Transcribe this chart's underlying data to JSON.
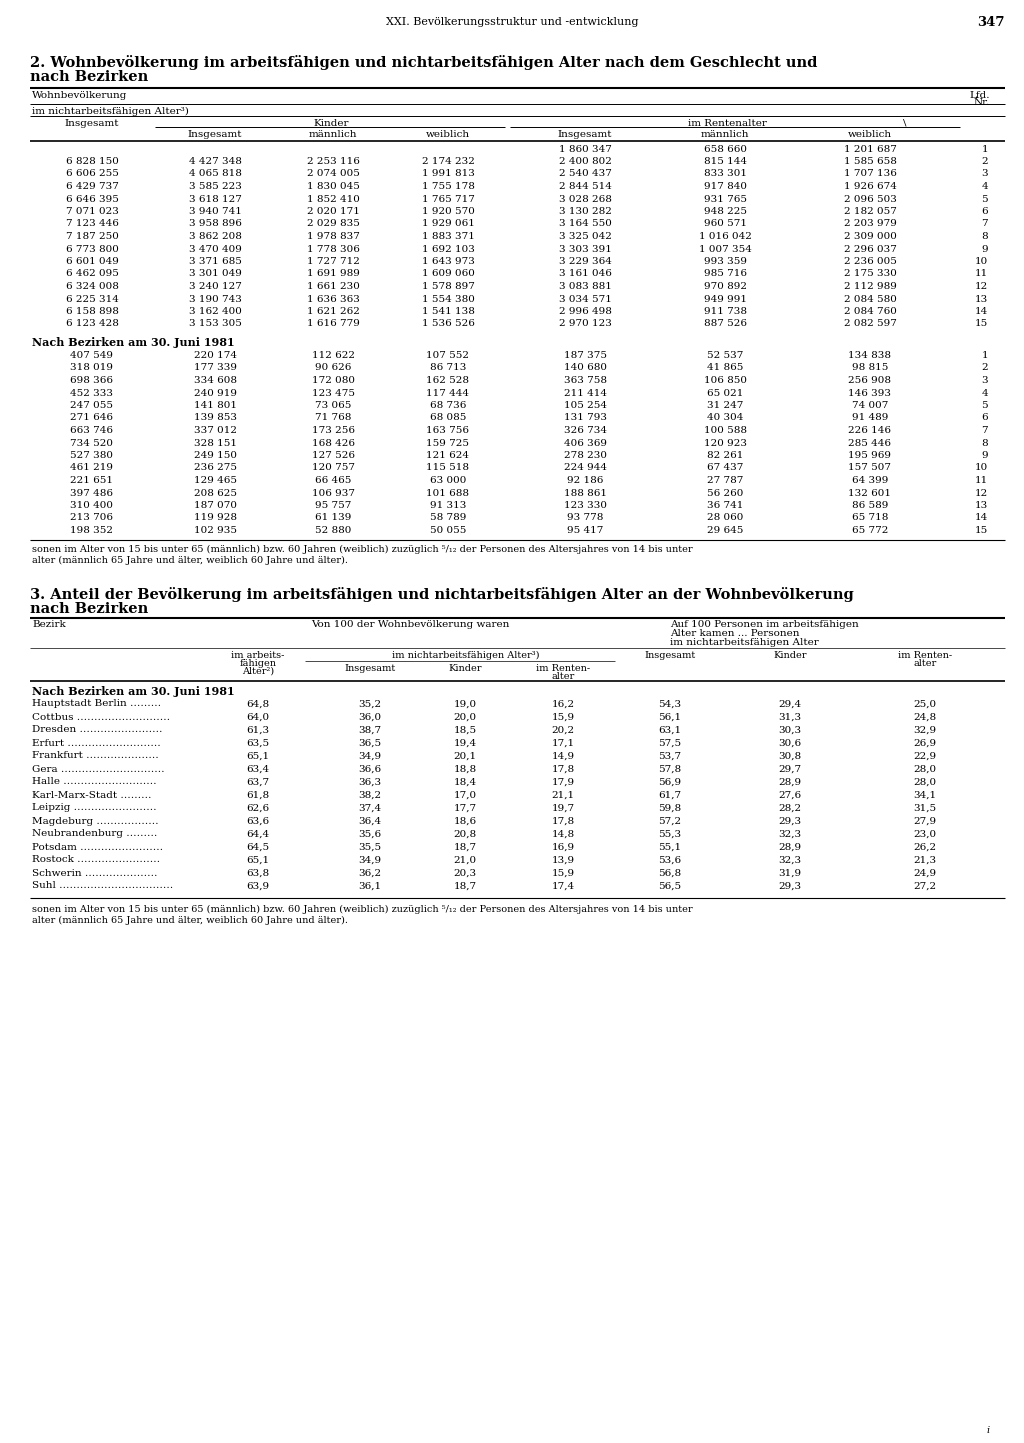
{
  "page_header": "XXI. Bevölkerungsstruktur und -entwicklung",
  "page_number": "347",
  "section2_title_line1": "2. Wohnbevölkerung im arbeitsfähigen und nichtarbeitsfähigen Alter nach dem Geschlecht und",
  "section2_title_line2": "nach Bezirken",
  "section3_title_line1": "3. Anteil der Bevölkerung im arbeitsfähigen und nichtarbeitsfähigen Alter an der Wohnbevölkerung",
  "section3_title_line2": "nach Bezirken",
  "table2_data_historical": [
    [
      "",
      "",
      "",
      "",
      "1 860 347",
      "658 660",
      "1 201 687",
      "1"
    ],
    [
      "6 828 150",
      "4 427 348",
      "2 253 116",
      "2 174 232",
      "2 400 802",
      "815 144",
      "1 585 658",
      "2"
    ],
    [
      "6 606 255",
      "4 065 818",
      "2 074 005",
      "1 991 813",
      "2 540 437",
      "833 301",
      "1 707 136",
      "3"
    ],
    [
      "6 429 737",
      "3 585 223",
      "1 830 045",
      "1 755 178",
      "2 844 514",
      "917 840",
      "1 926 674",
      "4"
    ],
    [
      "6 646 395",
      "3 618 127",
      "1 852 410",
      "1 765 717",
      "3 028 268",
      "931 765",
      "2 096 503",
      "5"
    ],
    [
      "7 071 023",
      "3 940 741",
      "2 020 171",
      "1 920 570",
      "3 130 282",
      "948 225",
      "2 182 057",
      "6"
    ],
    [
      "7 123 446",
      "3 958 896",
      "2 029 835",
      "1 929 061",
      "3 164 550",
      "960 571",
      "2 203 979",
      "7"
    ],
    [
      "7 187 250",
      "3 862 208",
      "1 978 837",
      "1 883 371",
      "3 325 042",
      "1 016 042",
      "2 309 000",
      "8"
    ],
    [
      "6 773 800",
      "3 470 409",
      "1 778 306",
      "1 692 103",
      "3 303 391",
      "1 007 354",
      "2 296 037",
      "9"
    ],
    [
      "6 601 049",
      "3 371 685",
      "1 727 712",
      "1 643 973",
      "3 229 364",
      "993 359",
      "2 236 005",
      "10"
    ],
    [
      "6 462 095",
      "3 301 049",
      "1 691 989",
      "1 609 060",
      "3 161 046",
      "985 716",
      "2 175 330",
      "11"
    ],
    [
      "6 324 008",
      "3 240 127",
      "1 661 230",
      "1 578 897",
      "3 083 881",
      "970 892",
      "2 112 989",
      "12"
    ],
    [
      "6 225 314",
      "3 190 743",
      "1 636 363",
      "1 554 380",
      "3 034 571",
      "949 991",
      "2 084 580",
      "13"
    ],
    [
      "6 158 898",
      "3 162 400",
      "1 621 262",
      "1 541 138",
      "2 996 498",
      "911 738",
      "2 084 760",
      "14"
    ],
    [
      "6 123 428",
      "3 153 305",
      "1 616 779",
      "1 536 526",
      "2 970 123",
      "887 526",
      "2 082 597",
      "15"
    ]
  ],
  "table2_data_bezirke": [
    [
      "407 549",
      "220 174",
      "112 622",
      "107 552",
      "187 375",
      "52 537",
      "134 838",
      "1"
    ],
    [
      "318 019",
      "177 339",
      "90 626",
      "86 713",
      "140 680",
      "41 865",
      "98 815",
      "2"
    ],
    [
      "698 366",
      "334 608",
      "172 080",
      "162 528",
      "363 758",
      "106 850",
      "256 908",
      "3"
    ],
    [
      "452 333",
      "240 919",
      "123 475",
      "117 444",
      "211 414",
      "65 021",
      "146 393",
      "4"
    ],
    [
      "247 055",
      "141 801",
      "73 065",
      "68 736",
      "105 254",
      "31 247",
      "74 007",
      "5"
    ],
    [
      "271 646",
      "139 853",
      "71 768",
      "68 085",
      "131 793",
      "40 304",
      "91 489",
      "6"
    ],
    [
      "663 746",
      "337 012",
      "173 256",
      "163 756",
      "326 734",
      "100 588",
      "226 146",
      "7"
    ],
    [
      "734 520",
      "328 151",
      "168 426",
      "159 725",
      "406 369",
      "120 923",
      "285 446",
      "8"
    ],
    [
      "527 380",
      "249 150",
      "127 526",
      "121 624",
      "278 230",
      "82 261",
      "195 969",
      "9"
    ],
    [
      "461 219",
      "236 275",
      "120 757",
      "115 518",
      "224 944",
      "67 437",
      "157 507",
      "10"
    ],
    [
      "221 651",
      "129 465",
      "66 465",
      "63 000",
      "92 186",
      "27 787",
      "64 399",
      "11"
    ],
    [
      "397 486",
      "208 625",
      "106 937",
      "101 688",
      "188 861",
      "56 260",
      "132 601",
      "12"
    ],
    [
      "310 400",
      "187 070",
      "95 757",
      "91 313",
      "123 330",
      "36 741",
      "86 589",
      "13"
    ],
    [
      "213 706",
      "119 928",
      "61 139",
      "58 789",
      "93 778",
      "28 060",
      "65 718",
      "14"
    ],
    [
      "198 352",
      "102 935",
      "52 880",
      "50 055",
      "95 417",
      "29 645",
      "65 772",
      "15"
    ]
  ],
  "footnote2_line1": "sonen im Alter von 15 bis unter 65 (männlich) bzw. 60 Jahren (weiblich) zuzüglich ⁵/₁₂ der Personen des Altersjahres von 14 bis unter",
  "footnote2_line2": "alter (männlich 65 Jahre und älter, weiblich 60 Jahre und älter).",
  "table3_data": [
    [
      "Hauptstadt Berlin",
      "64,8",
      "35,2",
      "19,0",
      "16,2",
      "54,3",
      "29,4",
      "25,0"
    ],
    [
      "Cottbus",
      "64,0",
      "36,0",
      "20,0",
      "15,9",
      "56,1",
      "31,3",
      "24,8"
    ],
    [
      "Dresden",
      "61,3",
      "38,7",
      "18,5",
      "20,2",
      "63,1",
      "30,3",
      "32,9"
    ],
    [
      "Erfurt",
      "63,5",
      "36,5",
      "19,4",
      "17,1",
      "57,5",
      "30,6",
      "26,9"
    ],
    [
      "Frankfurt",
      "65,1",
      "34,9",
      "20,1",
      "14,9",
      "53,7",
      "30,8",
      "22,9"
    ],
    [
      "Gera",
      "63,4",
      "36,6",
      "18,8",
      "17,8",
      "57,8",
      "29,7",
      "28,0"
    ],
    [
      "Halle",
      "63,7",
      "36,3",
      "18,4",
      "17,9",
      "56,9",
      "28,9",
      "28,0"
    ],
    [
      "Karl-Marx-Stadt",
      "61,8",
      "38,2",
      "17,0",
      "21,1",
      "61,7",
      "27,6",
      "34,1"
    ],
    [
      "Leipzig",
      "62,6",
      "37,4",
      "17,7",
      "19,7",
      "59,8",
      "28,2",
      "31,5"
    ],
    [
      "Magdeburg",
      "63,6",
      "36,4",
      "18,6",
      "17,8",
      "57,2",
      "29,3",
      "27,9"
    ],
    [
      "Neubrandenburg",
      "64,4",
      "35,6",
      "20,8",
      "14,8",
      "55,3",
      "32,3",
      "23,0"
    ],
    [
      "Potsdam",
      "64,5",
      "35,5",
      "18,7",
      "16,9",
      "55,1",
      "28,9",
      "26,2"
    ],
    [
      "Rostock",
      "65,1",
      "34,9",
      "21,0",
      "13,9",
      "53,6",
      "32,3",
      "21,3"
    ],
    [
      "Schwerin",
      "63,8",
      "36,2",
      "20,3",
      "15,9",
      "56,8",
      "31,9",
      "24,9"
    ],
    [
      "Suhl",
      "63,9",
      "36,1",
      "18,7",
      "17,4",
      "56,5",
      "29,3",
      "27,2"
    ]
  ],
  "footnote3_line1": "sonen im Alter von 15 bis unter 65 (männlich) bzw. 60 Jahren (weiblich) zuzüglich ⁵/₁₂ der Personen des Altersjahres von 14 bis unter",
  "footnote3_line2": "alter (männlich 65 Jahre und älter, weiblich 60 Jahre und älter)."
}
